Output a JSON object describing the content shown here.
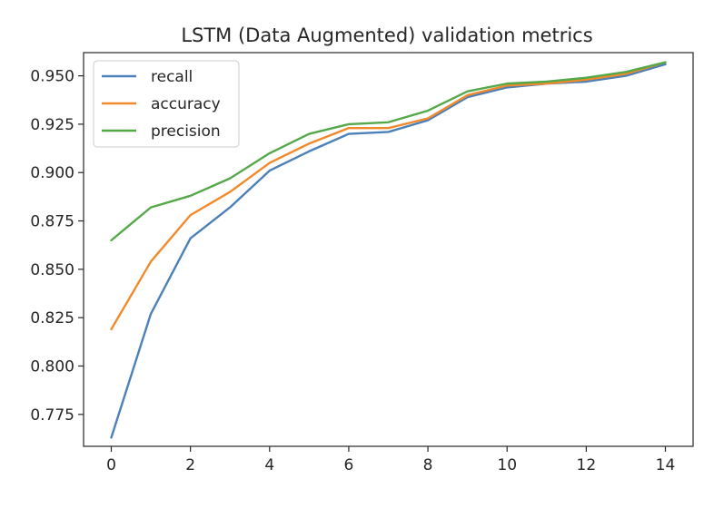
{
  "chart_data": {
    "type": "line",
    "title": "LSTM (Data Augmented) validation metrics",
    "xlabel": "",
    "ylabel": "",
    "x": [
      0,
      1,
      2,
      3,
      4,
      5,
      6,
      7,
      8,
      9,
      10,
      11,
      12,
      13,
      14
    ],
    "xlim": [
      -0.7,
      14.7
    ],
    "ylim": [
      0.7585,
      0.962
    ],
    "xticks": [
      0,
      2,
      4,
      6,
      8,
      10,
      12,
      14
    ],
    "yticks": [
      0.775,
      0.8,
      0.825,
      0.85,
      0.875,
      0.9,
      0.925,
      0.95
    ],
    "ytick_labels": [
      "0.775",
      "0.800",
      "0.825",
      "0.850",
      "0.875",
      "0.900",
      "0.925",
      "0.950"
    ],
    "xtick_labels": [
      "0",
      "2",
      "4",
      "6",
      "8",
      "10",
      "12",
      "14"
    ],
    "grid": false,
    "legend_position": "top-left",
    "series": [
      {
        "name": "recall",
        "color": "#4c80b8",
        "values": [
          0.763,
          0.827,
          0.866,
          0.882,
          0.901,
          0.911,
          0.92,
          0.921,
          0.927,
          0.939,
          0.944,
          0.946,
          0.947,
          0.95,
          0.956
        ]
      },
      {
        "name": "accuracy",
        "color": "#f08a2c",
        "values": [
          0.819,
          0.854,
          0.878,
          0.89,
          0.905,
          0.915,
          0.923,
          0.923,
          0.928,
          0.94,
          0.945,
          0.946,
          0.948,
          0.951,
          0.957
        ]
      },
      {
        "name": "precision",
        "color": "#55a84a",
        "values": [
          0.865,
          0.882,
          0.888,
          0.897,
          0.91,
          0.92,
          0.925,
          0.926,
          0.932,
          0.942,
          0.946,
          0.947,
          0.949,
          0.952,
          0.957
        ]
      }
    ]
  }
}
